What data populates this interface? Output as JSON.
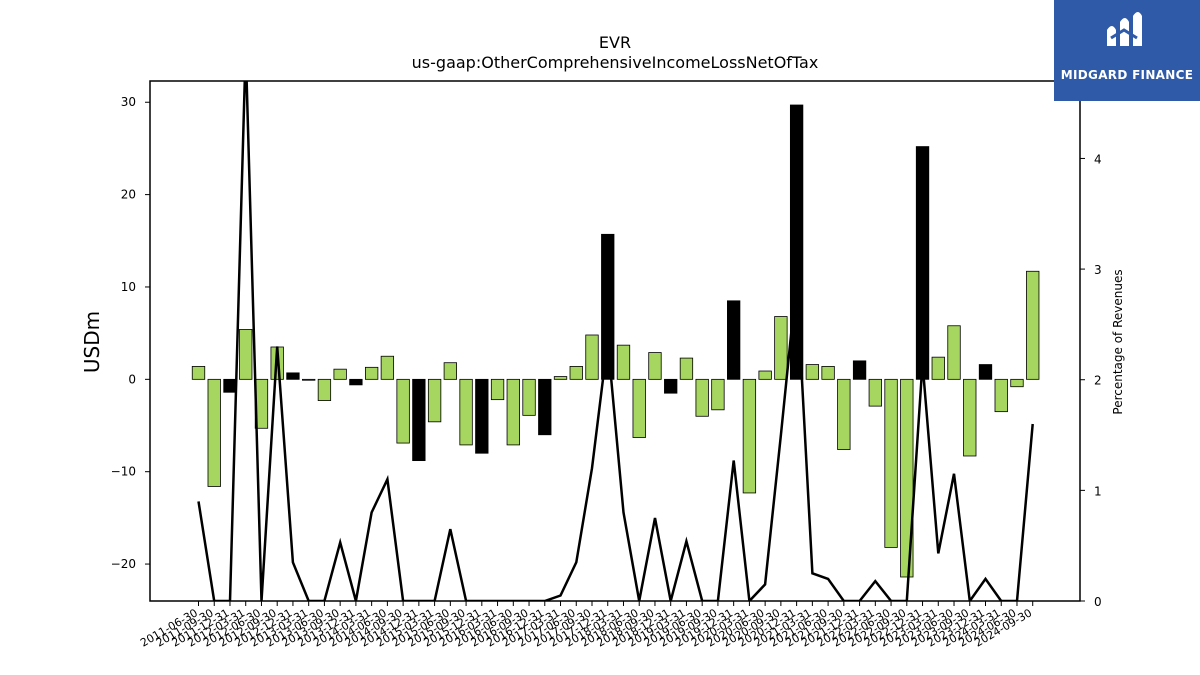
{
  "brand": {
    "name": "MIDGARD FINANCE",
    "logo_icon": "midgard-logo-icon",
    "background": "#2e5aa8"
  },
  "chart_data": {
    "type": "bar",
    "title": "EVR",
    "subtitle": "us-gaap:OtherComprehensiveIncomeLossNetOfTax",
    "ylabel": "USDm",
    "y2label": "Percentage of Revenues",
    "ylim": [
      -24,
      32.3
    ],
    "y2lim": [
      0,
      4.7
    ],
    "yticks": [
      -20,
      -10,
      0,
      10,
      20,
      30
    ],
    "y2ticks": [
      0,
      1,
      2,
      3,
      4
    ],
    "colors": {
      "positive": "#a6d65f",
      "negative": "#a6d65f",
      "highlight": "#000000",
      "line": "#000000"
    },
    "categories": [
      "2011-06-30",
      "2011-09-30",
      "2011-12-31",
      "2012-03-31",
      "2012-06-30",
      "2012-09-30",
      "2012-12-31",
      "2013-03-31",
      "2013-06-30",
      "2013-09-30",
      "2013-12-31",
      "2014-03-31",
      "2014-06-30",
      "2014-09-30",
      "2014-12-31",
      "2015-03-31",
      "2015-06-30",
      "2015-09-30",
      "2015-12-31",
      "2016-03-31",
      "2016-06-30",
      "2016-09-30",
      "2016-12-31",
      "2017-03-31",
      "2017-06-30",
      "2017-09-30",
      "2017-12-31",
      "2018-03-31",
      "2018-06-30",
      "2018-09-30",
      "2018-12-31",
      "2019-03-31",
      "2019-06-30",
      "2019-09-30",
      "2019-12-31",
      "2020-03-31",
      "2020-06-30",
      "2020-09-30",
      "2020-12-31",
      "2021-03-31",
      "2021-06-30",
      "2021-09-30",
      "2021-12-31",
      "2022-03-31",
      "2022-06-30",
      "2022-09-30",
      "2022-12-31",
      "2023-03-31",
      "2023-06-30",
      "2023-09-30",
      "2023-12-31",
      "2024-03-31",
      "2024-06-30",
      "2024-09-30"
    ],
    "series": [
      {
        "kind": "bar",
        "values": [
          1.4,
          -11.6,
          -1.4,
          5.4,
          -5.3,
          3.5,
          0.7,
          -0.1,
          -2.3,
          1.1,
          -0.6,
          1.3,
          2.5,
          -6.9,
          -8.8,
          -4.6,
          1.8,
          -7.1,
          -8.0,
          -2.2,
          -7.1,
          -3.9,
          -6.0,
          0.3,
          1.4,
          4.8,
          15.7,
          3.7,
          -6.3,
          2.9,
          -1.5,
          2.3,
          -4.0,
          -3.3,
          8.5,
          -12.3,
          0.9,
          6.8,
          29.7,
          1.6,
          1.4,
          -7.6,
          2.0,
          -2.9,
          -18.2,
          -21.4,
          25.2,
          2.4,
          5.8,
          -8.3,
          1.6,
          -3.5,
          -0.8,
          11.7
        ],
        "highlight": [
          false,
          false,
          true,
          false,
          false,
          false,
          true,
          false,
          false,
          false,
          true,
          false,
          false,
          false,
          true,
          false,
          false,
          false,
          true,
          false,
          false,
          false,
          true,
          false,
          false,
          false,
          true,
          false,
          false,
          false,
          true,
          false,
          false,
          false,
          true,
          false,
          false,
          false,
          true,
          false,
          false,
          false,
          true,
          false,
          false,
          false,
          true,
          false,
          false,
          false,
          true,
          false,
          false,
          false
        ]
      },
      {
        "kind": "line",
        "axis": "y2",
        "values": [
          0.9,
          0,
          0,
          5.0,
          0,
          2.3,
          0.35,
          0,
          0,
          0.53,
          0,
          0.8,
          1.1,
          0,
          0,
          0,
          0.65,
          0,
          0,
          0,
          0,
          0,
          0,
          0.05,
          0.35,
          1.2,
          2.35,
          0.8,
          0,
          0.75,
          0,
          0.54,
          0,
          0,
          1.27,
          0,
          0.15,
          1.5,
          2.9,
          0.25,
          0.2,
          0,
          0,
          0.18,
          0,
          0,
          2.15,
          0.43,
          1.15,
          0,
          0.2,
          0,
          0,
          1.6
        ]
      }
    ]
  }
}
